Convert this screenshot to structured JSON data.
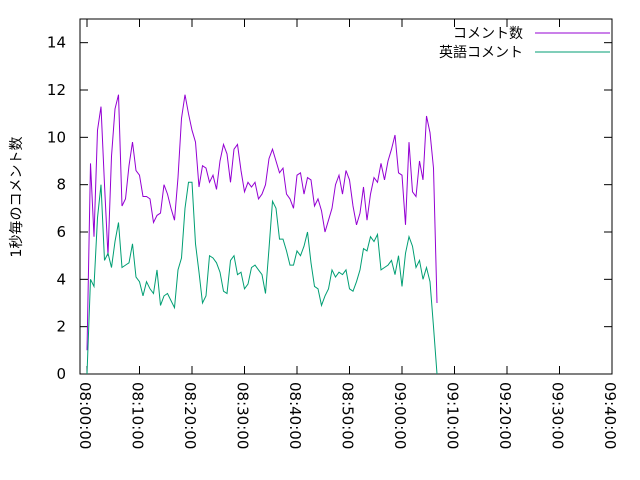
{
  "chart_data": {
    "type": "line",
    "ylabel": "1秒毎のコメント数",
    "xlabel": "",
    "ylim": [
      0,
      15
    ],
    "yticks": [
      0,
      2,
      4,
      6,
      8,
      10,
      12,
      14
    ],
    "xlim": [
      "07:58:40",
      "09:40:00"
    ],
    "xticks": [
      "08:00:00",
      "08:10:00",
      "08:20:00",
      "08:30:00",
      "08:40:00",
      "08:50:00",
      "09:00:00",
      "09:10:00",
      "09:20:00",
      "09:30:00",
      "09:40:00"
    ],
    "x_interval_seconds": 40,
    "x_start": "08:00:00",
    "legend_position": "top-right",
    "grid": false,
    "series": [
      {
        "name": "コメント数",
        "color": "#9400d3",
        "values": [
          1.0,
          8.9,
          5.8,
          10.3,
          11.3,
          8.0,
          5.0,
          9.2,
          11.2,
          11.8,
          7.1,
          7.4,
          8.8,
          9.8,
          8.6,
          8.4,
          7.5,
          7.5,
          7.4,
          6.4,
          6.7,
          6.8,
          8.0,
          7.6,
          7.0,
          6.5,
          8.3,
          10.8,
          11.8,
          11.0,
          10.3,
          9.8,
          7.9,
          8.8,
          8.7,
          8.1,
          8.4,
          7.8,
          9.0,
          9.7,
          9.3,
          8.1,
          9.5,
          9.7,
          8.6,
          7.7,
          8.1,
          7.9,
          8.1,
          7.4,
          7.6,
          8.0,
          9.1,
          9.5,
          9.0,
          8.5,
          8.7,
          7.6,
          7.4,
          7.0,
          8.4,
          8.5,
          7.6,
          8.3,
          8.2,
          7.1,
          7.4,
          6.9,
          6.0,
          6.5,
          7.0,
          8.0,
          8.4,
          7.6,
          8.6,
          8.2,
          7.1,
          6.3,
          6.8,
          7.9,
          6.5,
          7.6,
          8.3,
          8.1,
          8.9,
          8.2,
          9.0,
          9.5,
          10.1,
          8.5,
          8.4,
          6.3,
          9.8,
          7.7,
          7.5,
          9.0,
          8.2,
          10.9,
          10.2,
          8.7,
          3.0
        ]
      },
      {
        "name": "英語コメント",
        "color": "#009e73",
        "values": [
          0.0,
          4.0,
          3.7,
          6.6,
          8.0,
          4.8,
          5.1,
          4.5,
          5.6,
          6.4,
          4.5,
          4.6,
          4.7,
          5.5,
          4.1,
          3.9,
          3.3,
          3.9,
          3.6,
          3.4,
          4.4,
          2.9,
          3.3,
          3.4,
          3.1,
          2.8,
          4.4,
          4.9,
          7.0,
          8.1,
          8.1,
          5.5,
          4.3,
          3.0,
          3.3,
          5.0,
          4.9,
          4.7,
          4.3,
          3.5,
          3.4,
          4.8,
          5.0,
          4.2,
          4.3,
          3.6,
          3.8,
          4.5,
          4.6,
          4.4,
          4.2,
          3.4,
          5.3,
          7.3,
          7.0,
          5.7,
          5.7,
          5.2,
          4.6,
          4.6,
          5.2,
          5.0,
          5.4,
          6.0,
          4.7,
          3.7,
          3.6,
          2.9,
          3.3,
          3.6,
          4.4,
          4.1,
          4.3,
          4.2,
          4.4,
          3.6,
          3.5,
          3.9,
          4.4,
          5.3,
          5.2,
          5.8,
          5.6,
          5.9,
          4.4,
          4.5,
          4.6,
          4.8,
          4.2,
          5.0,
          3.7,
          5.1,
          5.8,
          5.4,
          4.5,
          4.8,
          4.0,
          4.5,
          3.9,
          2.0,
          0.0
        ]
      }
    ]
  }
}
